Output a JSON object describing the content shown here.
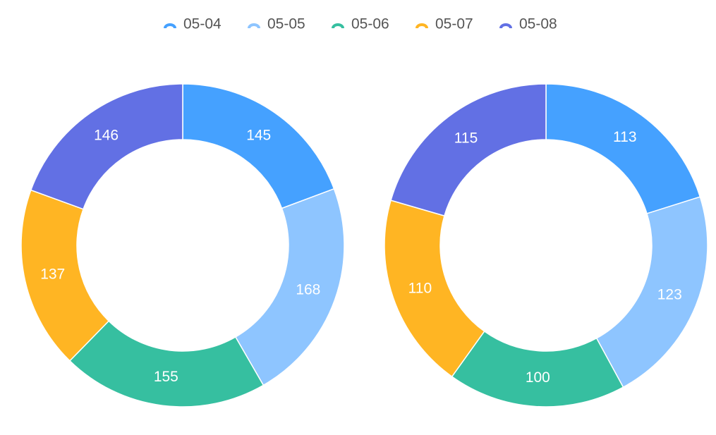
{
  "legend": {
    "categories": [
      "05-04",
      "05-05",
      "05-06",
      "05-07",
      "05-08"
    ],
    "colors": [
      "#45a1ff",
      "#8ec5ff",
      "#36bfa0",
      "#ffb523",
      "#6270e4"
    ]
  },
  "chart_data": [
    {
      "type": "pie",
      "values": [
        145,
        168,
        155,
        137,
        146
      ]
    },
    {
      "type": "pie",
      "values": [
        113,
        123,
        100,
        110,
        115
      ]
    }
  ]
}
